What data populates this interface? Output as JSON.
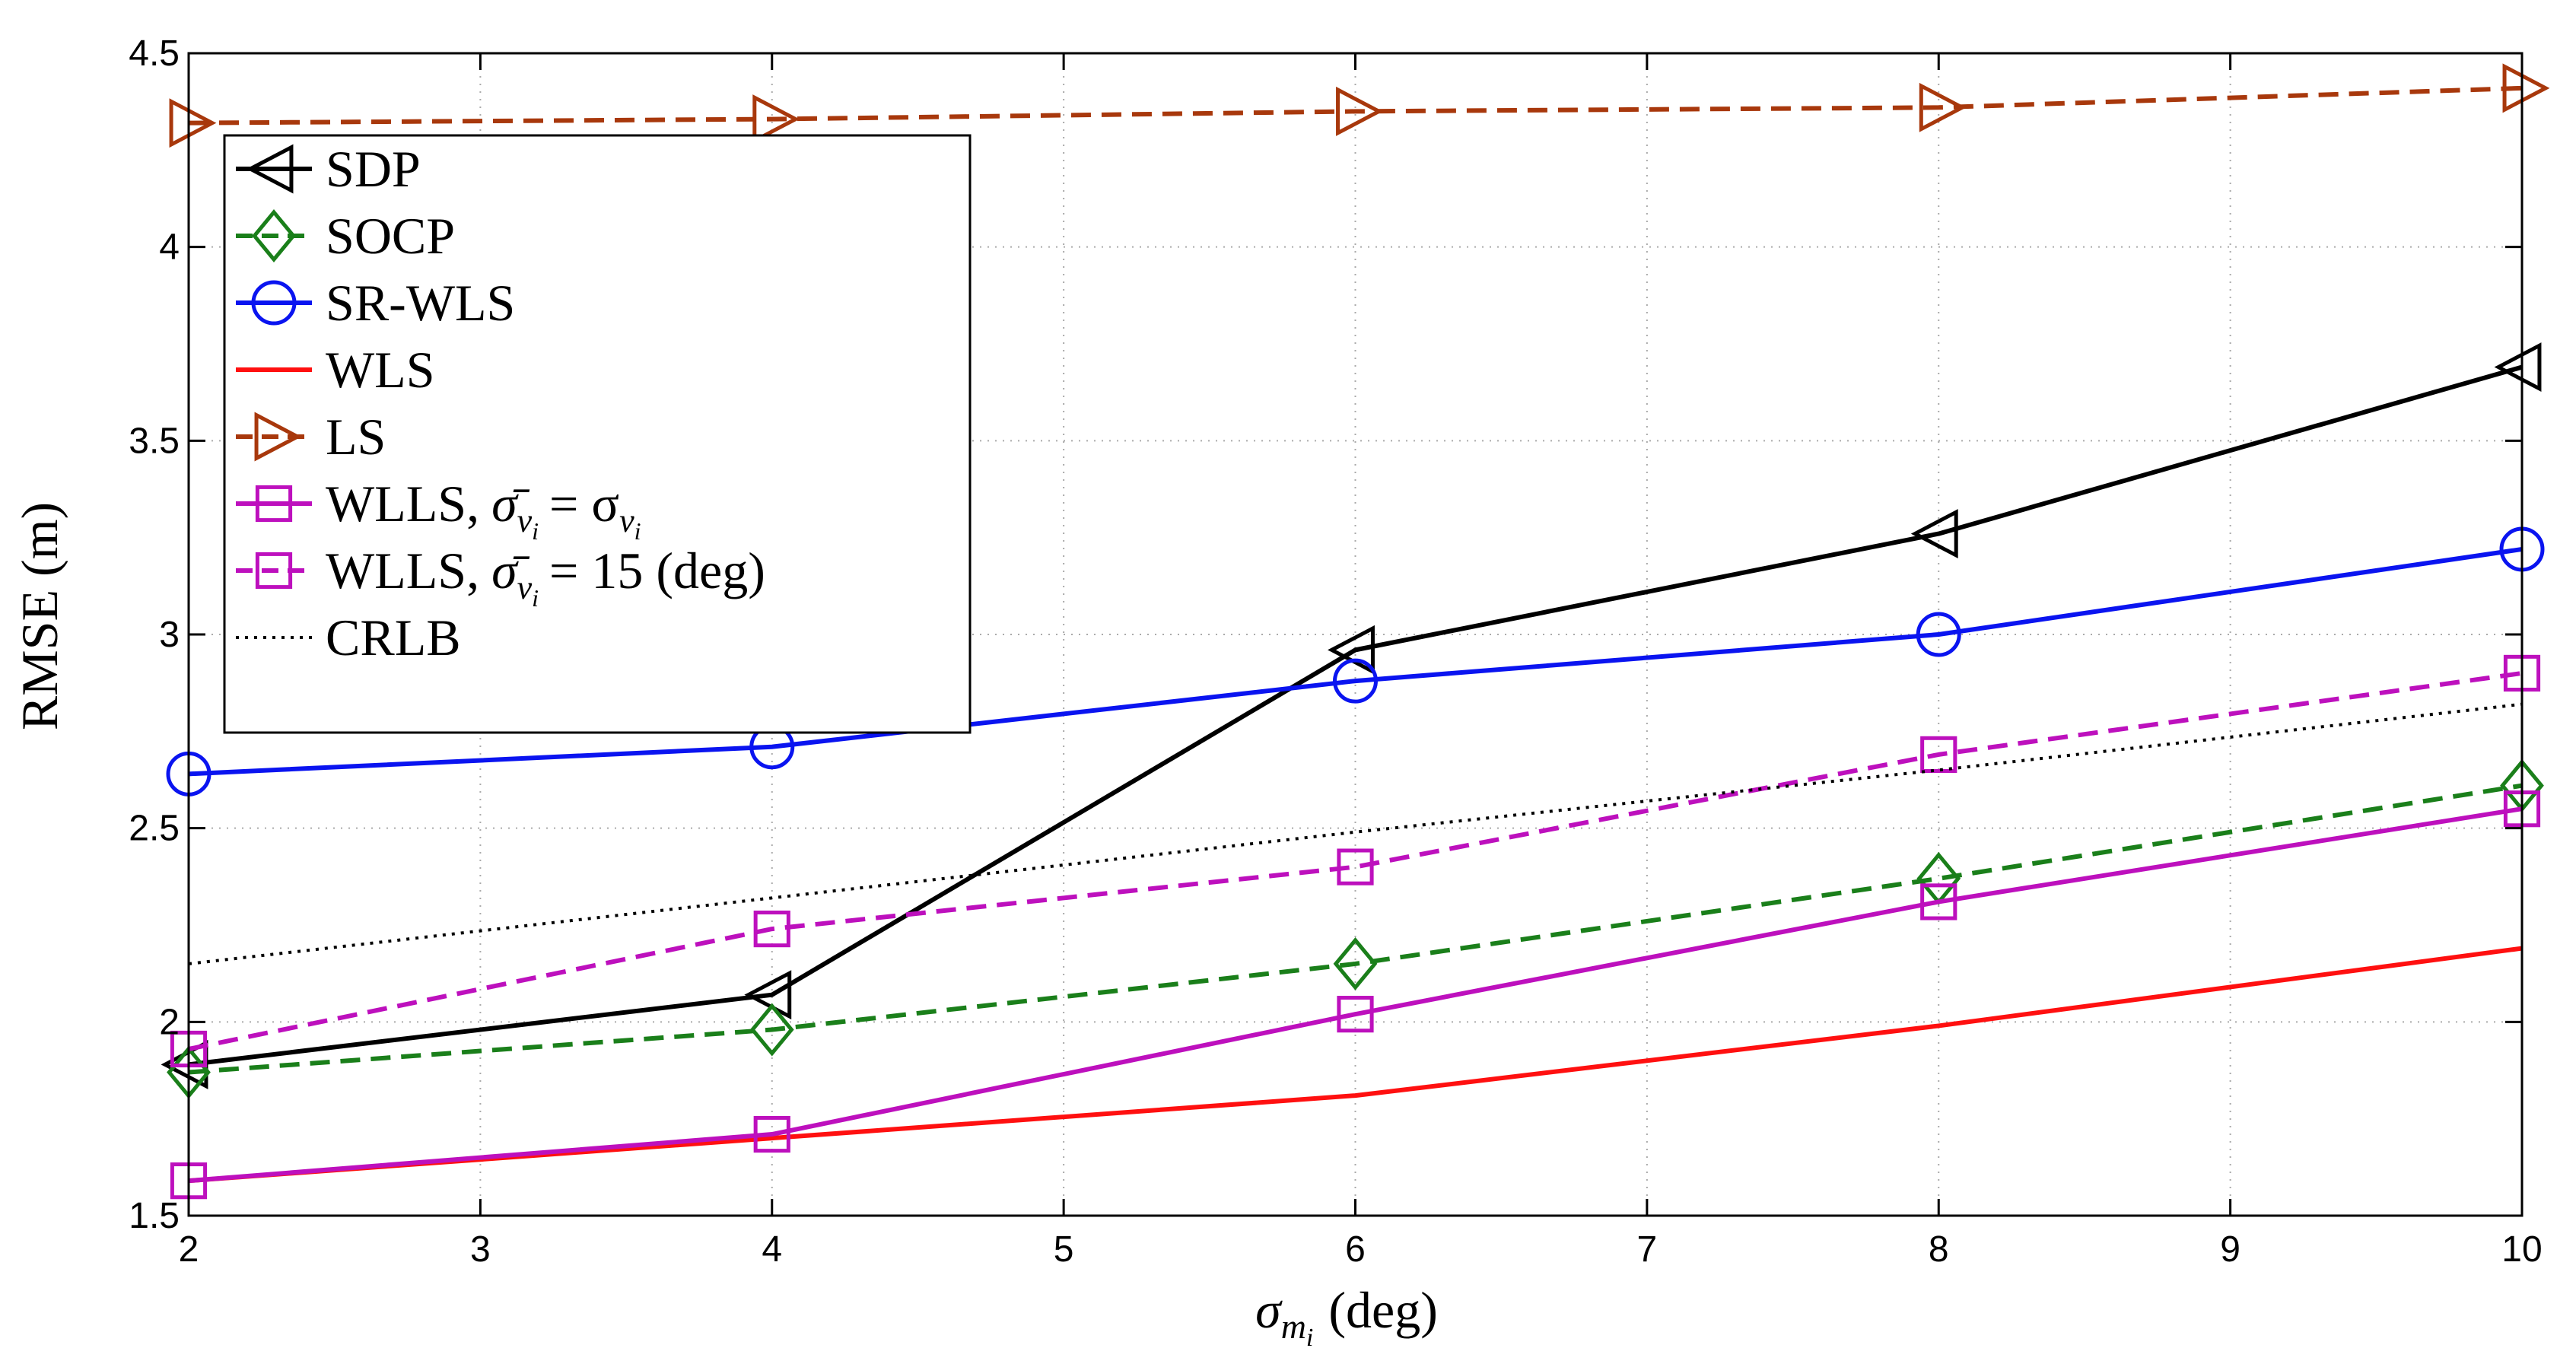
{
  "chart_data": {
    "type": "line",
    "xlabel": "σ_{m_i} (deg)",
    "xlabel_main": "σ",
    "xlabel_sub": "m",
    "xlabel_subsub": "i",
    "xlabel_unit": "(deg)",
    "ylabel": "RMSE (m)",
    "xlim": [
      2,
      10
    ],
    "ylim": [
      1.5,
      4.5
    ],
    "xticks": [
      2,
      3,
      4,
      5,
      6,
      7,
      8,
      9,
      10
    ],
    "yticks": [
      1.5,
      2,
      2.5,
      3,
      3.5,
      4,
      4.5
    ],
    "ytick_labels": [
      "1.5",
      "2",
      "2.5",
      "3",
      "3.5",
      "4",
      "4.5"
    ],
    "grid": true,
    "legend_position": "top-left",
    "x": [
      2,
      4,
      6,
      8,
      10
    ],
    "series": [
      {
        "name": "SDP",
        "label": "SDP",
        "color": "#000000",
        "dash": "solid",
        "marker": "triangle-left",
        "values": [
          1.89,
          2.07,
          2.96,
          3.26,
          3.69
        ]
      },
      {
        "name": "SOCP",
        "label": "SOCP",
        "color": "#1a7f1a",
        "dash": "dashed",
        "marker": "diamond",
        "values": [
          1.87,
          1.98,
          2.15,
          2.37,
          2.61
        ]
      },
      {
        "name": "SR-WLS",
        "label": "SR-WLS",
        "color": "#0a14f0",
        "dash": "solid",
        "marker": "circle",
        "values": [
          2.64,
          2.71,
          2.88,
          3.0,
          3.22
        ]
      },
      {
        "name": "WLS",
        "label": "WLS",
        "color": "#ff1010",
        "dash": "solid",
        "marker": "none",
        "values": [
          1.59,
          1.7,
          1.81,
          1.99,
          2.19
        ]
      },
      {
        "name": "LS",
        "label": "LS",
        "color": "#a8380c",
        "dash": "dashed",
        "marker": "triangle-right",
        "values": [
          4.32,
          4.33,
          4.35,
          4.36,
          4.41
        ]
      },
      {
        "name": "WLLS, σ̄_{v_i} = σ_{v_i}",
        "label": "WLLS,",
        "math": "σ̄",
        "sub": "v",
        "subsub": "i",
        "eq": "= σ",
        "eq_sub": "v",
        "eq_subsub": "i",
        "color": "#bd10bd",
        "dash": "solid",
        "marker": "square",
        "values": [
          1.59,
          1.71,
          2.02,
          2.31,
          2.55
        ]
      },
      {
        "name": "WLLS, σ̄_{v_i} = 15 (deg)",
        "label": "WLLS,",
        "math": "σ̄",
        "sub": "v",
        "subsub": "i",
        "eq": "= 15 (deg)",
        "color": "#bd10bd",
        "dash": "dashed",
        "marker": "square",
        "values": [
          1.93,
          2.24,
          2.4,
          2.69,
          2.9
        ]
      },
      {
        "name": "CRLB",
        "label": "CRLB",
        "color": "#000000",
        "dash": "dotted",
        "marker": "none",
        "values": [
          2.15,
          2.32,
          2.49,
          2.65,
          2.82
        ]
      }
    ]
  }
}
